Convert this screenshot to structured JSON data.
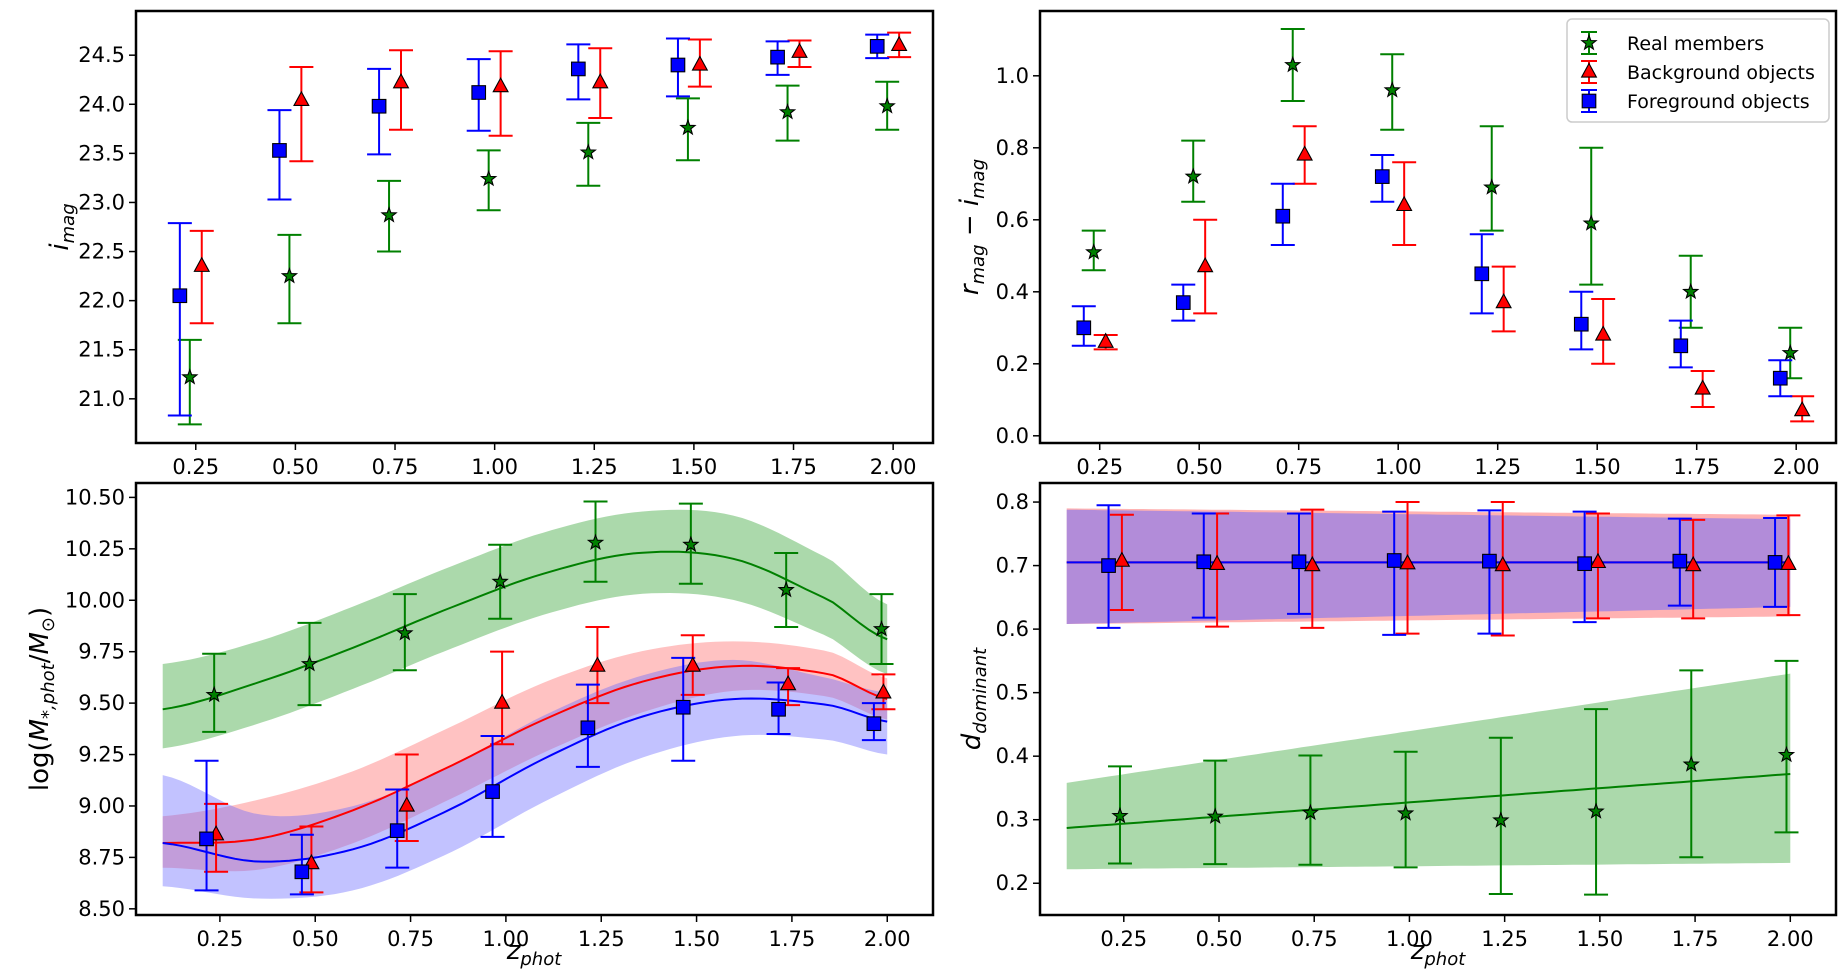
{
  "colors": {
    "members": "#008000",
    "background": "#ff0000",
    "foreground": "#0000ff",
    "members_fill": "#2ca02c",
    "background_fill": "#ff6666",
    "foreground_fill": "#6666ff",
    "overlap_fill": "#8c52b8"
  },
  "legend": {
    "members": "Real members",
    "background": "Background objects",
    "foreground": "Foreground objects"
  },
  "chart_data": [
    {
      "id": "imag",
      "type": "scatter",
      "xlabel": "z_phot",
      "ylabel": "i_mag",
      "xlim": [
        0.1,
        2.1
      ],
      "ylim": [
        20.55,
        24.95
      ],
      "xticks": [
        "0.25",
        "0.50",
        "0.75",
        "1.00",
        "1.25",
        "1.50",
        "1.75",
        "2.00"
      ],
      "yticks": [
        "21.0",
        "21.5",
        "22.0",
        "22.5",
        "23.0",
        "23.5",
        "24.0",
        "24.5"
      ],
      "legend_position": "none",
      "series": [
        {
          "name": "Real members",
          "key": "members",
          "marker": "star",
          "x": [
            0.235,
            0.485,
            0.735,
            0.985,
            1.235,
            1.485,
            1.735,
            1.985
          ],
          "y": [
            21.22,
            22.25,
            22.87,
            23.24,
            23.51,
            23.76,
            23.92,
            23.98
          ],
          "err_lo": [
            0.48,
            0.48,
            0.37,
            0.32,
            0.34,
            0.33,
            0.29,
            0.24
          ],
          "err_hi": [
            0.38,
            0.42,
            0.35,
            0.29,
            0.3,
            0.3,
            0.27,
            0.25
          ]
        },
        {
          "name": "Background objects",
          "key": "background",
          "marker": "triangle",
          "x": [
            0.265,
            0.515,
            0.765,
            1.015,
            1.265,
            1.515,
            1.765,
            2.015
          ],
          "y": [
            22.35,
            24.04,
            24.22,
            24.18,
            24.22,
            24.4,
            24.53,
            24.6
          ],
          "err_lo": [
            0.58,
            0.62,
            0.48,
            0.5,
            0.36,
            0.22,
            0.15,
            0.12
          ],
          "err_hi": [
            0.36,
            0.34,
            0.33,
            0.36,
            0.35,
            0.26,
            0.12,
            0.13
          ]
        },
        {
          "name": "Foreground objects",
          "key": "foreground",
          "marker": "square",
          "x": [
            0.21,
            0.46,
            0.71,
            0.96,
            1.21,
            1.46,
            1.71,
            1.96
          ],
          "y": [
            22.05,
            23.53,
            23.98,
            24.12,
            24.36,
            24.4,
            24.48,
            24.59
          ],
          "err_lo": [
            1.22,
            0.5,
            0.49,
            0.39,
            0.31,
            0.32,
            0.18,
            0.12
          ],
          "err_hi": [
            0.74,
            0.41,
            0.38,
            0.34,
            0.25,
            0.27,
            0.16,
            0.12
          ]
        }
      ]
    },
    {
      "id": "color",
      "type": "scatter",
      "xlabel": "z_phot",
      "ylabel": "r_mag - i_mag",
      "xlim": [
        0.1,
        2.1
      ],
      "ylim": [
        -0.02,
        1.18
      ],
      "xticks": [
        "0.25",
        "0.50",
        "0.75",
        "1.00",
        "1.25",
        "1.50",
        "1.75",
        "2.00"
      ],
      "yticks": [
        "0.0",
        "0.2",
        "0.4",
        "0.6",
        "0.8",
        "1.0"
      ],
      "legend_position": "upper right",
      "series": [
        {
          "name": "Real members",
          "key": "members",
          "marker": "star",
          "x": [
            0.235,
            0.485,
            0.735,
            0.985,
            1.235,
            1.485,
            1.735,
            1.985
          ],
          "y": [
            0.51,
            0.72,
            1.03,
            0.96,
            0.69,
            0.59,
            0.4,
            0.23
          ],
          "err_lo": [
            0.05,
            0.07,
            0.1,
            0.11,
            0.12,
            0.17,
            0.1,
            0.07
          ],
          "err_hi": [
            0.06,
            0.1,
            0.1,
            0.1,
            0.17,
            0.21,
            0.1,
            0.07
          ]
        },
        {
          "name": "Background objects",
          "key": "background",
          "marker": "triangle",
          "x": [
            0.265,
            0.515,
            0.765,
            1.015,
            1.265,
            1.515,
            1.765,
            2.015
          ],
          "y": [
            0.26,
            0.47,
            0.78,
            0.64,
            0.37,
            0.28,
            0.13,
            0.07
          ],
          "err_lo": [
            0.02,
            0.13,
            0.08,
            0.11,
            0.08,
            0.08,
            0.05,
            0.03
          ],
          "err_hi": [
            0.02,
            0.13,
            0.08,
            0.12,
            0.1,
            0.1,
            0.05,
            0.04
          ]
        },
        {
          "name": "Foreground objects",
          "key": "foreground",
          "marker": "square",
          "x": [
            0.21,
            0.46,
            0.71,
            0.96,
            1.21,
            1.46,
            1.71,
            1.96
          ],
          "y": [
            0.3,
            0.37,
            0.61,
            0.72,
            0.45,
            0.31,
            0.25,
            0.16
          ],
          "err_lo": [
            0.05,
            0.05,
            0.08,
            0.07,
            0.11,
            0.07,
            0.06,
            0.05
          ],
          "err_hi": [
            0.06,
            0.05,
            0.09,
            0.06,
            0.11,
            0.09,
            0.07,
            0.05
          ]
        }
      ]
    },
    {
      "id": "mass",
      "type": "scatter",
      "xlabel": "z_phot",
      "ylabel": "log(M*,phot/M⊙)",
      "xlim": [
        0.03,
        2.12
      ],
      "ylim": [
        8.47,
        10.57
      ],
      "xticks": [
        "0.25",
        "0.50",
        "0.75",
        "1.00",
        "1.25",
        "1.50",
        "1.75",
        "2.00"
      ],
      "yticks": [
        "8.50",
        "8.75",
        "9.00",
        "9.25",
        "9.50",
        "9.75",
        "10.00",
        "10.25",
        "10.50"
      ],
      "legend_position": "none",
      "fit_range": [
        0.1,
        2.0
      ],
      "series": [
        {
          "name": "Real members",
          "key": "members",
          "marker": "star",
          "x": [
            0.235,
            0.485,
            0.735,
            0.985,
            1.235,
            1.485,
            1.735,
            1.985
          ],
          "y": [
            9.54,
            9.69,
            9.84,
            10.09,
            10.28,
            10.27,
            10.05,
            9.86
          ],
          "err_lo": [
            0.18,
            0.2,
            0.18,
            0.18,
            0.19,
            0.19,
            0.18,
            0.17
          ],
          "err_hi": [
            0.2,
            0.2,
            0.19,
            0.18,
            0.2,
            0.2,
            0.18,
            0.17
          ],
          "fit_nodes_x": [
            0.1,
            0.35,
            0.6,
            0.85,
            1.1,
            1.35,
            1.6,
            1.85,
            2.0
          ],
          "fit_y": [
            9.47,
            9.6,
            9.77,
            9.96,
            10.13,
            10.23,
            10.2,
            10.0,
            9.81
          ],
          "band_lo": [
            9.28,
            9.4,
            9.57,
            9.76,
            9.93,
            10.03,
            10.0,
            9.82,
            9.64
          ],
          "band_hi": [
            9.69,
            9.8,
            9.97,
            10.16,
            10.33,
            10.43,
            10.41,
            10.2,
            9.98
          ]
        },
        {
          "name": "Background objects",
          "key": "background",
          "marker": "triangle",
          "x": [
            0.24,
            0.49,
            0.74,
            0.99,
            1.24,
            1.49,
            1.74,
            1.99
          ],
          "y": [
            8.86,
            8.72,
            9.0,
            9.5,
            9.68,
            9.68,
            9.59,
            9.55
          ],
          "err_lo": [
            0.18,
            0.14,
            0.17,
            0.2,
            0.18,
            0.14,
            0.1,
            0.08
          ],
          "err_hi": [
            0.15,
            0.18,
            0.25,
            0.25,
            0.19,
            0.15,
            0.08,
            0.09
          ],
          "fit_nodes_x": [
            0.1,
            0.35,
            0.6,
            0.85,
            1.1,
            1.35,
            1.6,
            1.85,
            2.0
          ],
          "fit_y": [
            8.82,
            8.84,
            8.98,
            9.19,
            9.42,
            9.6,
            9.68,
            9.64,
            9.52
          ],
          "band_lo": [
            8.7,
            8.69,
            8.82,
            9.03,
            9.26,
            9.45,
            9.56,
            9.53,
            9.42
          ],
          "band_hi": [
            8.95,
            9.03,
            9.17,
            9.38,
            9.6,
            9.75,
            9.8,
            9.75,
            9.62
          ]
        },
        {
          "name": "Foreground objects",
          "key": "foreground",
          "marker": "square",
          "x": [
            0.215,
            0.465,
            0.715,
            0.965,
            1.215,
            1.465,
            1.715,
            1.965
          ],
          "y": [
            8.84,
            8.68,
            8.88,
            9.07,
            9.38,
            9.48,
            9.47,
            9.4
          ],
          "err_lo": [
            0.25,
            0.11,
            0.18,
            0.22,
            0.19,
            0.26,
            0.12,
            0.08
          ],
          "err_hi": [
            0.38,
            0.18,
            0.2,
            0.27,
            0.21,
            0.24,
            0.13,
            0.1
          ],
          "fit_nodes_x": [
            0.1,
            0.35,
            0.6,
            0.85,
            1.1,
            1.35,
            1.6,
            1.85,
            2.0
          ],
          "fit_y": [
            8.82,
            8.73,
            8.79,
            8.98,
            9.23,
            9.43,
            9.52,
            9.49,
            9.41
          ],
          "band_lo": [
            8.61,
            8.55,
            8.59,
            8.77,
            9.02,
            9.23,
            9.34,
            9.32,
            9.25
          ],
          "band_hi": [
            9.15,
            8.96,
            9.0,
            9.19,
            9.44,
            9.63,
            9.71,
            9.62,
            9.55
          ]
        }
      ]
    },
    {
      "id": "dominant",
      "type": "scatter",
      "xlabel": "z_phot",
      "ylabel": "d_dominant",
      "xlim": [
        0.03,
        2.12
      ],
      "ylim": [
        0.15,
        0.83
      ],
      "xticks": [
        "0.25",
        "0.50",
        "0.75",
        "1.00",
        "1.25",
        "1.50",
        "1.75",
        "2.00"
      ],
      "yticks": [
        "0.2",
        "0.3",
        "0.4",
        "0.5",
        "0.6",
        "0.7",
        "0.8"
      ],
      "legend_position": "none",
      "fit_range": [
        0.1,
        2.0
      ],
      "series": [
        {
          "name": "Real members",
          "key": "members",
          "marker": "star",
          "x": [
            0.24,
            0.49,
            0.74,
            0.99,
            1.24,
            1.49,
            1.74,
            1.99
          ],
          "y": [
            0.306,
            0.305,
            0.311,
            0.31,
            0.299,
            0.313,
            0.387,
            0.402
          ],
          "err_lo": [
            0.075,
            0.075,
            0.082,
            0.085,
            0.116,
            0.131,
            0.146,
            0.122
          ],
          "err_hi": [
            0.078,
            0.088,
            0.09,
            0.097,
            0.13,
            0.161,
            0.148,
            0.148
          ],
          "fit_nodes_x": [
            0.1,
            2.0
          ],
          "fit_y": [
            0.287,
            0.372
          ],
          "band_lo": [
            0.222,
            0.232
          ],
          "band_hi": [
            0.358,
            0.53
          ]
        },
        {
          "name": "Background objects",
          "key": "background",
          "marker": "triangle",
          "x": [
            0.245,
            0.495,
            0.745,
            0.995,
            1.245,
            1.495,
            1.745,
            1.995
          ],
          "y": [
            0.707,
            0.702,
            0.7,
            0.703,
            0.7,
            0.705,
            0.7,
            0.702
          ],
          "err_lo": [
            0.077,
            0.098,
            0.098,
            0.11,
            0.11,
            0.088,
            0.083,
            0.08
          ],
          "err_hi": [
            0.073,
            0.08,
            0.088,
            0.097,
            0.1,
            0.077,
            0.072,
            0.077
          ],
          "fit_nodes_x": [
            0.1,
            2.0
          ],
          "fit_y": [
            0.705,
            0.705
          ],
          "band_lo": [
            0.608,
            0.62
          ],
          "band_hi": [
            0.79,
            0.78
          ]
        },
        {
          "name": "Foreground objects",
          "key": "foreground",
          "marker": "square",
          "x": [
            0.21,
            0.46,
            0.71,
            0.96,
            1.21,
            1.46,
            1.71,
            1.96
          ],
          "y": [
            0.7,
            0.706,
            0.706,
            0.708,
            0.707,
            0.703,
            0.707,
            0.705
          ],
          "err_lo": [
            0.098,
            0.088,
            0.082,
            0.117,
            0.114,
            0.092,
            0.07,
            0.07
          ],
          "err_hi": [
            0.095,
            0.076,
            0.076,
            0.077,
            0.08,
            0.082,
            0.067,
            0.07
          ],
          "fit_nodes_x": [
            0.1,
            2.0
          ],
          "fit_y": [
            0.705,
            0.705
          ],
          "band_lo": [
            0.608,
            0.635
          ],
          "band_hi": [
            0.788,
            0.773
          ]
        }
      ]
    }
  ]
}
